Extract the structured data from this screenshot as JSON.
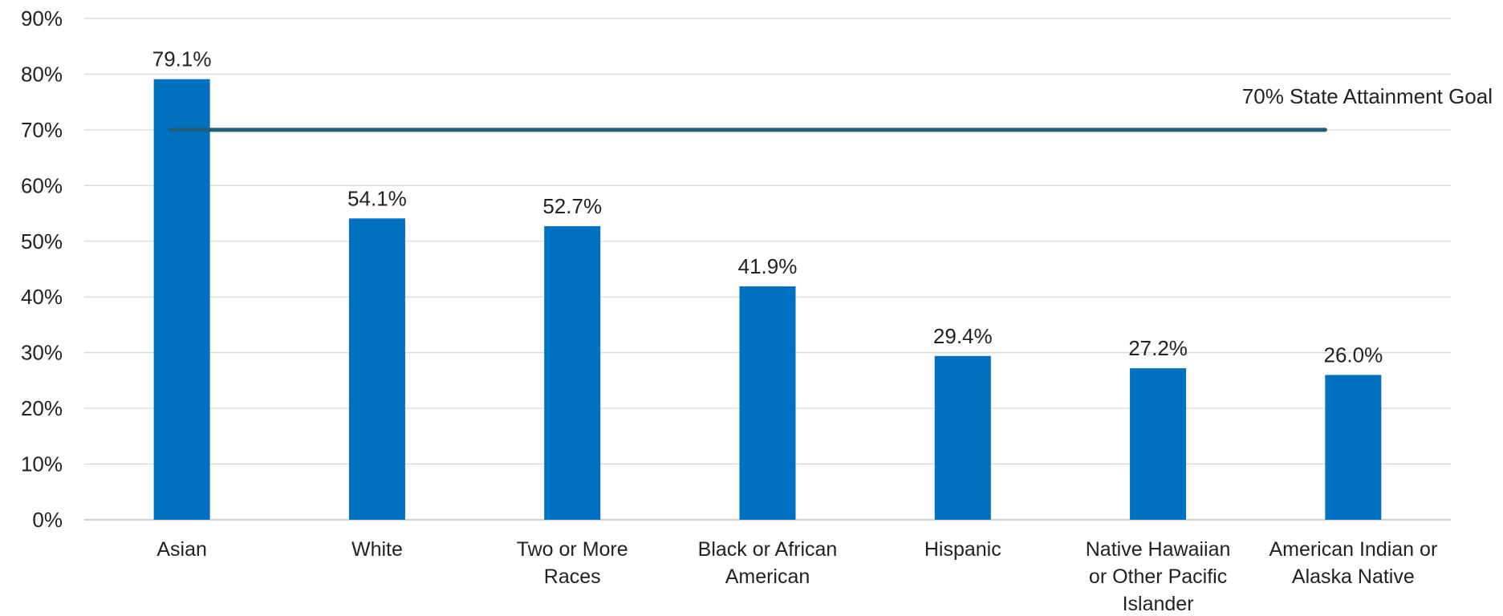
{
  "chart_data": {
    "type": "bar",
    "title": "",
    "xlabel": "",
    "ylabel": "",
    "ylim": [
      0,
      90
    ],
    "y_ticks": [
      0,
      10,
      20,
      30,
      40,
      50,
      60,
      70,
      80,
      90
    ],
    "y_tick_labels": [
      "0%",
      "10%",
      "20%",
      "30%",
      "40%",
      "50%",
      "60%",
      "70%",
      "80%",
      "90%"
    ],
    "grid": true,
    "categories": [
      [
        "Asian"
      ],
      [
        "White"
      ],
      [
        "Two or More",
        "Races"
      ],
      [
        "Black or African",
        "American"
      ],
      [
        "Hispanic"
      ],
      [
        "Native Hawaiian",
        "or Other Pacific",
        "Islander"
      ],
      [
        "American Indian or",
        "Alaska Native"
      ]
    ],
    "values": [
      79.1,
      54.1,
      52.7,
      41.9,
      29.4,
      27.2,
      26.0
    ],
    "value_labels": [
      "79.1%",
      "54.1%",
      "52.7%",
      "41.9%",
      "29.4%",
      "27.2%",
      "26.0%"
    ],
    "bar_color": "#0070c0",
    "reference_line": {
      "value": 70,
      "label": "70% State Attainment Goal",
      "color": "#1f5f7a"
    }
  }
}
